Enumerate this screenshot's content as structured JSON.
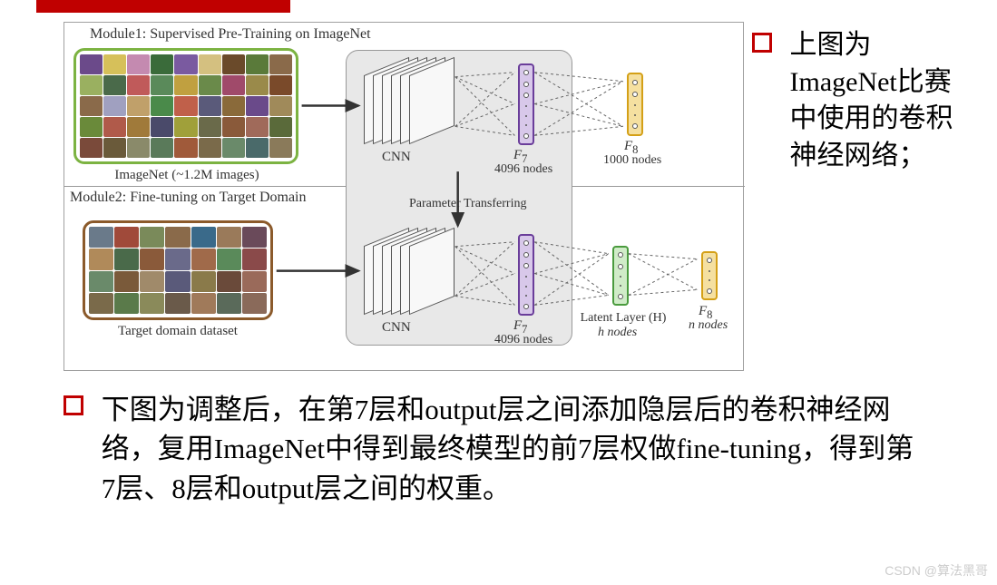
{
  "colors": {
    "accent_red": "#c00000",
    "imagenet_border": "#7cb342",
    "target_border": "#8b5a2b",
    "f7_border": "#6a3d9a",
    "f7_fill": "#d8c8ea",
    "f8_top_border": "#d4a017",
    "f8_top_fill": "#f5e0a0",
    "latent_border": "#4a9b3e",
    "latent_fill": "#d0ecc8",
    "f8_bot_border": "#d4a017",
    "f8_bot_fill": "#f5e0a0",
    "cnn_bg": "#e8e8e8",
    "grid_border": "#999999",
    "watermark": "#cccccc"
  },
  "module1": {
    "label": "Module1: Supervised Pre-Training on ImageNet",
    "label_fontsize": 16,
    "grid": {
      "rows": 5,
      "cols": 9,
      "colors": [
        "#6b4a8a",
        "#d6c05a",
        "#c48ab0",
        "#3a6b3a",
        "#7a5aa0",
        "#d4c080",
        "#6a4a2a",
        "#5a7a3a",
        "#8a6a4a",
        "#9ab060",
        "#4a6a4a",
        "#c05a5a",
        "#5a8a5a",
        "#c0a040",
        "#6a8a4a",
        "#a04a6a",
        "#9a8a4a",
        "#7a4a2a",
        "#8a6a4a",
        "#a0a0c0",
        "#c0a06a",
        "#4a8a4a",
        "#c0604a",
        "#5a5a7a",
        "#8a6a3a",
        "#6a4a8a",
        "#a08a5a",
        "#6a8a3a",
        "#b05a4a",
        "#a07a3a",
        "#4a4a6a",
        "#a0a03a",
        "#6a6a4a",
        "#8a5a3a",
        "#a06a5a",
        "#5a6a3a",
        "#7a4a3a",
        "#6a5a3a",
        "#8a8a6a",
        "#5a7a5a",
        "#a05a3a",
        "#7a6a4a",
        "#6a8a6a",
        "#4a6a6a",
        "#8a7a5a"
      ]
    },
    "grid_caption": "ImageNet (~1.2M images)",
    "cnn_label": "CNN",
    "f7_label": "F",
    "f7_sub": "7",
    "f7_caption": "4096 nodes",
    "f8_label": "F",
    "f8_sub": "8",
    "f8_caption": "1000 nodes"
  },
  "module2": {
    "label": "Module2: Fine-tuning on Target Domain",
    "label_fontsize": 16,
    "grid": {
      "rows": 4,
      "cols": 7,
      "colors": [
        "#6a7a8a",
        "#a04a3a",
        "#7a8a5a",
        "#8a6a4a",
        "#3a6a8a",
        "#9a7a5a",
        "#6a4a5a",
        "#b08a5a",
        "#4a6a4a",
        "#8a5a3a",
        "#6a6a8a",
        "#a06a4a",
        "#5a8a5a",
        "#8a4a4a",
        "#6a8a6a",
        "#7a5a3a",
        "#a08a6a",
        "#5a5a7a",
        "#8a7a4a",
        "#6a4a3a",
        "#9a6a5a",
        "#7a6a4a",
        "#5a7a4a",
        "#8a8a5a",
        "#6a5a4a",
        "#a07a5a",
        "#5a6a5a",
        "#8a6a5a"
      ]
    },
    "grid_caption": "Target domain dataset",
    "cnn_label": "CNN",
    "f7_label": "F",
    "f7_sub": "7",
    "f7_caption": "4096 nodes",
    "latent_label": "Latent Layer (H)",
    "latent_caption": "h nodes",
    "f8_label": "F",
    "f8_sub": "8",
    "f8_caption": "n nodes",
    "transfer_label": "Parameter Transferring"
  },
  "right_bullet": "上图为ImageNet比赛中使用的卷积神经网络；",
  "bottom_bullet": "下图为调整后，在第7层和output层之间添加隐层后的卷积神经网络，复用ImageNet中得到最终模型的前7层权做fine-tuning，得到第7层、8层和output层之间的权重。",
  "watermark": "CSDN @算法黑哥"
}
